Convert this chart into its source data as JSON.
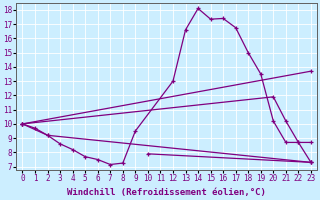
{
  "xlabel": "Windchill (Refroidissement éolien,°C)",
  "background_color": "#cceeff",
  "line_color": "#800080",
  "xlim": [
    -0.5,
    23.5
  ],
  "ylim": [
    6.8,
    18.5
  ],
  "yticks": [
    7,
    8,
    9,
    10,
    11,
    12,
    13,
    14,
    15,
    16,
    17,
    18
  ],
  "xticks": [
    0,
    1,
    2,
    3,
    4,
    5,
    6,
    7,
    8,
    9,
    10,
    11,
    12,
    13,
    14,
    15,
    16,
    17,
    18,
    19,
    20,
    21,
    22,
    23
  ],
  "line1_x": [
    0,
    1,
    2,
    3,
    4,
    5,
    6,
    7,
    8,
    9,
    12,
    13,
    14,
    15,
    16,
    17,
    18,
    19,
    20,
    21,
    22,
    23
  ],
  "line1_y": [
    10.0,
    9.7,
    9.2,
    8.6,
    8.2,
    7.7,
    7.5,
    7.15,
    7.25,
    9.5,
    13.0,
    16.6,
    18.1,
    17.35,
    17.4,
    16.75,
    15.0,
    13.5,
    10.2,
    8.7,
    8.7,
    7.3
  ],
  "line2_x": [
    0,
    23
  ],
  "line2_y": [
    10.0,
    13.7
  ],
  "line3_x": [
    0,
    20,
    21,
    22,
    23
  ],
  "line3_y": [
    10.0,
    11.9,
    10.2,
    8.7,
    8.7
  ],
  "line4_x": [
    0,
    2,
    23
  ],
  "line4_y": [
    10.0,
    9.2,
    7.3
  ],
  "line5_x": [
    10,
    23
  ],
  "line5_y": [
    7.9,
    7.3
  ],
  "grid_color": "#ffffff",
  "tick_fontsize": 5.5,
  "xlabel_fontsize": 6.5
}
